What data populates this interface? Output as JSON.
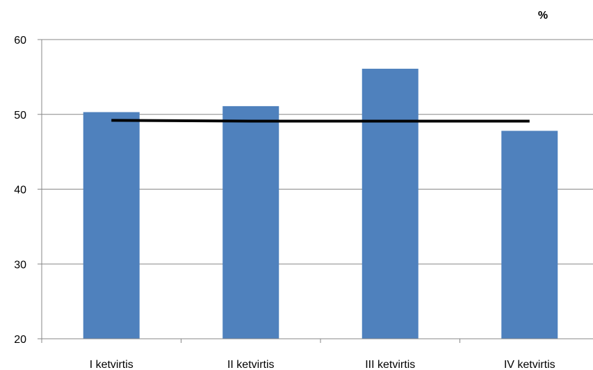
{
  "chart_data": {
    "type": "bar",
    "unit": "%",
    "categories": [
      "I ketvirtis",
      "II ketvirtis",
      "III ketvirtis",
      "IV ketvirtis"
    ],
    "series": [
      {
        "type": "bar",
        "values": [
          50.3,
          51.1,
          56.1,
          47.8
        ],
        "color": "#4F81BD"
      },
      {
        "type": "line",
        "values": [
          49.2,
          49.1,
          49.1,
          49.1
        ],
        "color": "#000000"
      }
    ],
    "ylim": [
      20,
      60
    ],
    "yticks": [
      20,
      30,
      40,
      50,
      60
    ],
    "grid": true,
    "legend": "none"
  }
}
